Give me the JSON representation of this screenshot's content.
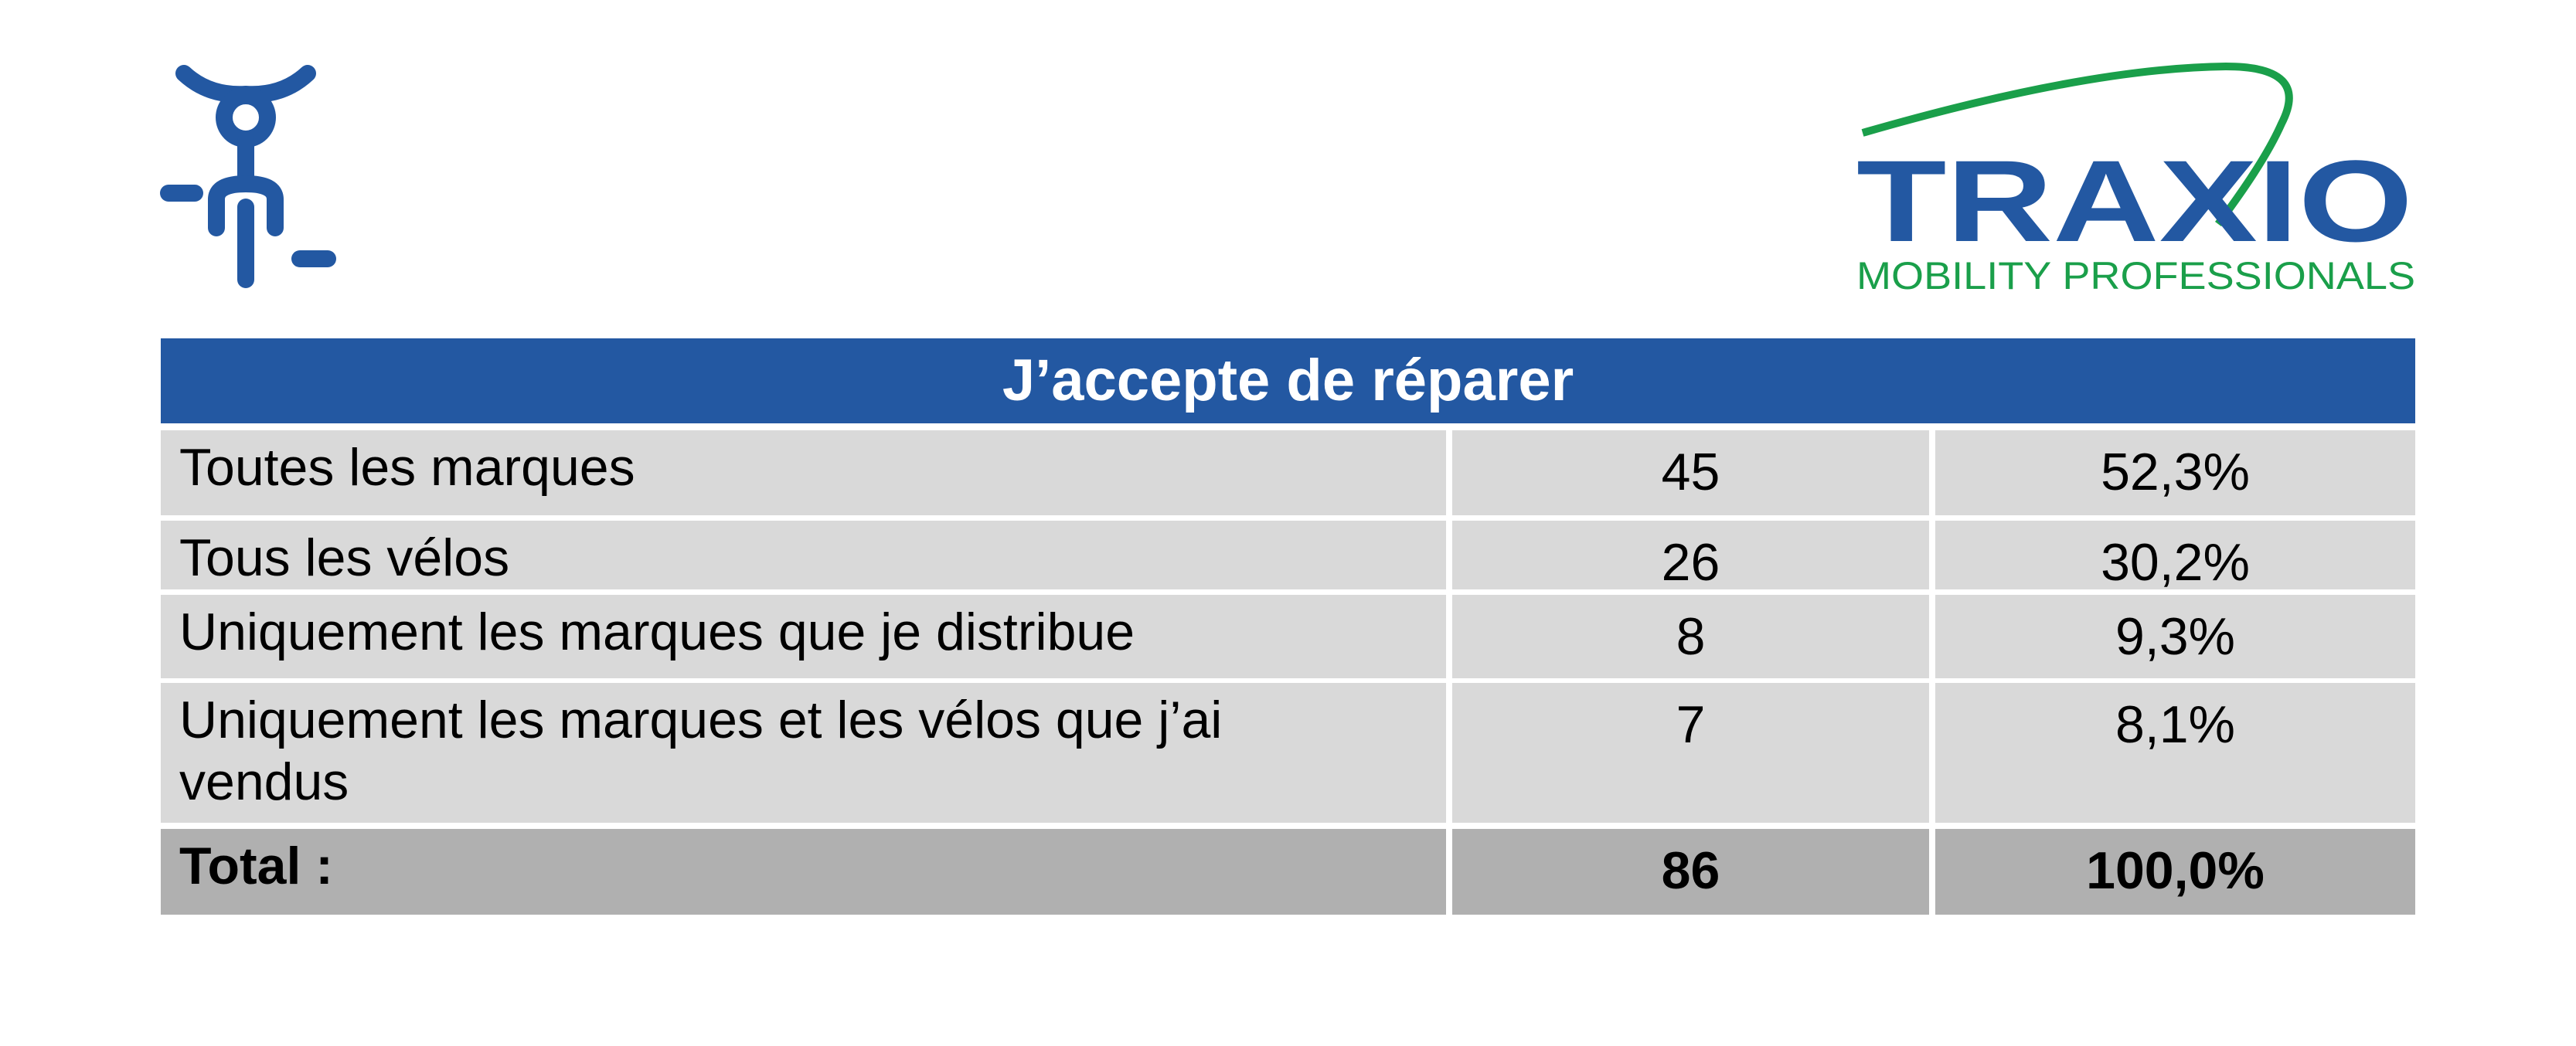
{
  "logo": {
    "name": "TRAXIO",
    "tagline": "MOBILITY PROFESSIONALS"
  },
  "table": {
    "title": "J’accepte de réparer",
    "rows": [
      [
        "Toutes les marques",
        "45",
        "52,3%"
      ],
      [
        "Tous les vélos",
        "26",
        "30,2%"
      ],
      [
        "Uniquement les marques que je distribue",
        "8",
        "9,3%"
      ],
      [
        "Uniquement les marques et les vélos que j’ai vendus",
        "7",
        "8,1%"
      ]
    ],
    "total": [
      "Total :",
      "86",
      "100,0%"
    ]
  }
}
